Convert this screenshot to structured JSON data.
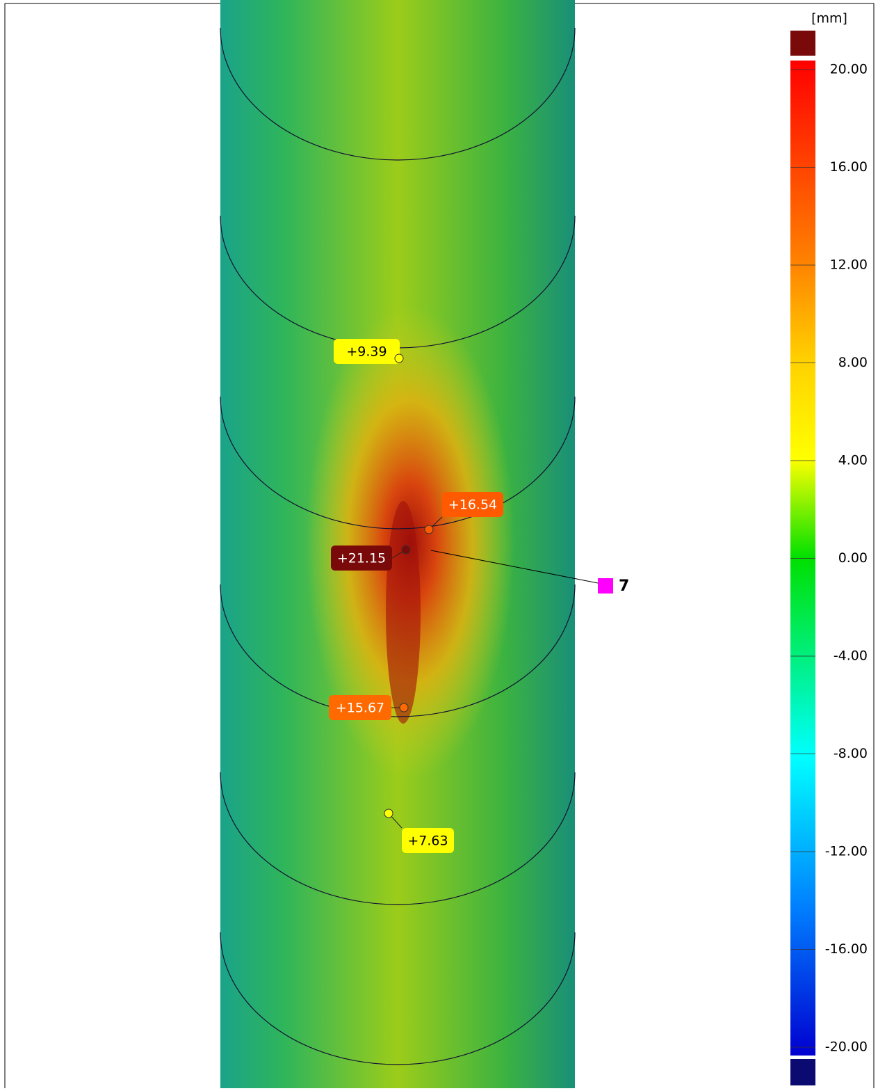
{
  "legend": {
    "unit": "[mm]",
    "ticks": [
      "20.00",
      "16.00",
      "12.00",
      "8.00",
      "4.00",
      "0.00",
      "-4.00",
      "-8.00",
      "-12.00",
      "-16.00",
      "-20.00"
    ]
  },
  "annotations": [
    {
      "label": "+9.39",
      "color": "#ffff00",
      "text_color": "#000000"
    },
    {
      "label": "+16.54",
      "color": "#ff5a00",
      "text_color": "#ffffff"
    },
    {
      "label": "+21.15",
      "color": "#7a0a0a",
      "text_color": "#ffffff"
    },
    {
      "label": "+15.67",
      "color": "#ff6a00",
      "text_color": "#ffffff"
    },
    {
      "label": "+7.63",
      "color": "#ffff00",
      "text_color": "#000000"
    }
  ],
  "marker": {
    "label": "7",
    "color": "#ff00ff"
  }
}
